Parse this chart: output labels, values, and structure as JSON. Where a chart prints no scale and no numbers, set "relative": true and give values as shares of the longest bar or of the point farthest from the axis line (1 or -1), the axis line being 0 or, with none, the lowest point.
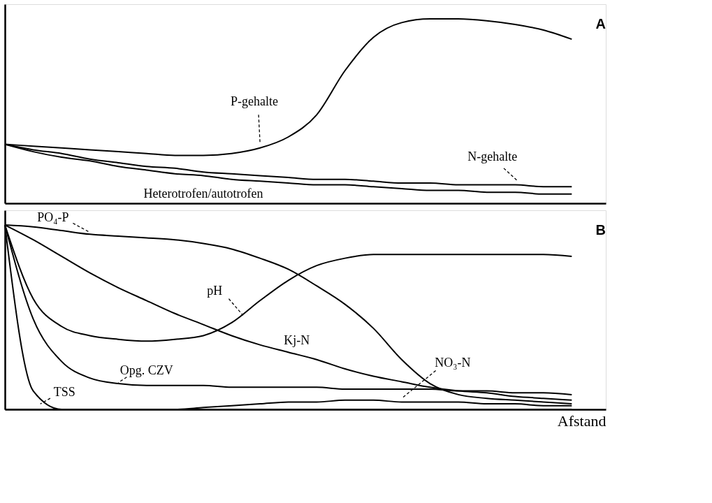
{
  "chart_data": [
    {
      "type": "line",
      "title": "A",
      "relative": true,
      "legend": false,
      "grid": false,
      "tick_labels": false,
      "marker": "none",
      "line_style": "solid",
      "categories": [
        null,
        null,
        null,
        null,
        null,
        null,
        null,
        null,
        null,
        null,
        null,
        null,
        null,
        null,
        null,
        null,
        null,
        null,
        null,
        null,
        null
      ],
      "series": [
        {
          "name": "P-gehalte",
          "color": "#000000",
          "values": [
            0.32,
            0.31,
            0.3,
            0.29,
            0.28,
            0.27,
            0.26,
            0.26,
            0.27,
            0.3,
            0.36,
            0.48,
            0.72,
            0.9,
            0.98,
            1.0,
            1.0,
            0.99,
            0.97,
            0.94,
            0.89
          ]
        },
        {
          "name": "N-gehalte",
          "color": "#000000",
          "values": [
            0.32,
            0.29,
            0.27,
            0.24,
            0.22,
            0.2,
            0.19,
            0.17,
            0.16,
            0.15,
            0.14,
            0.13,
            0.13,
            0.12,
            0.11,
            0.11,
            0.1,
            0.1,
            0.1,
            0.09,
            0.09
          ]
        },
        {
          "name": "Heterotrofen/autotrofen",
          "color": "#000000",
          "values": [
            0.32,
            0.28,
            0.25,
            0.23,
            0.2,
            0.18,
            0.16,
            0.15,
            0.13,
            0.12,
            0.11,
            0.1,
            0.1,
            0.09,
            0.08,
            0.07,
            0.07,
            0.06,
            0.06,
            0.05,
            0.05
          ]
        }
      ]
    },
    {
      "type": "line",
      "title": "B",
      "xlabel": "Afstand",
      "relative": true,
      "legend": false,
      "grid": false,
      "tick_labels": false,
      "marker": "none",
      "line_style": "solid",
      "categories": [
        null,
        null,
        null,
        null,
        null,
        null,
        null,
        null,
        null,
        null,
        null,
        null,
        null,
        null,
        null,
        null,
        null,
        null,
        null,
        null,
        null
      ],
      "series": [
        {
          "name": "PO₄-P",
          "color": "#000000",
          "values": [
            1.0,
            0.99,
            0.97,
            0.95,
            0.94,
            0.93,
            0.92,
            0.9,
            0.87,
            0.82,
            0.76,
            0.67,
            0.57,
            0.44,
            0.27,
            0.14,
            0.08,
            0.06,
            0.05,
            0.04,
            0.03
          ]
        },
        {
          "name": "Kj-N",
          "color": "#000000",
          "values": [
            1.0,
            0.92,
            0.83,
            0.74,
            0.66,
            0.59,
            0.52,
            0.46,
            0.4,
            0.35,
            0.31,
            0.27,
            0.22,
            0.18,
            0.15,
            0.12,
            0.1,
            0.09,
            0.07,
            0.06,
            0.05
          ]
        },
        {
          "name": "pH",
          "color": "#000000",
          "values": [
            1.0,
            0.6,
            0.45,
            0.4,
            0.38,
            0.37,
            0.38,
            0.4,
            0.47,
            0.59,
            0.7,
            0.78,
            0.82,
            0.84,
            0.84,
            0.84,
            0.84,
            0.84,
            0.84,
            0.84,
            0.83
          ]
        },
        {
          "name": "Opg. CZV",
          "color": "#000000",
          "values": [
            1.0,
            0.49,
            0.26,
            0.17,
            0.14,
            0.13,
            0.13,
            0.13,
            0.12,
            0.12,
            0.12,
            0.12,
            0.11,
            0.11,
            0.11,
            0.11,
            0.1,
            0.1,
            0.09,
            0.09,
            0.08
          ]
        },
        {
          "name": "TSS",
          "color": "#000000",
          "values": [
            1.0,
            0.1,
            0,
            0,
            0,
            0,
            0,
            0,
            0,
            0,
            0,
            0,
            0,
            0,
            0,
            0,
            0,
            0,
            0,
            0,
            0
          ]
        },
        {
          "name": "NO₃-N",
          "color": "#000000",
          "values": [
            0,
            0,
            0,
            0,
            0,
            0,
            0,
            0.01,
            0.02,
            0.03,
            0.04,
            0.04,
            0.05,
            0.05,
            0.04,
            0.04,
            0.04,
            0.03,
            0.03,
            0.02,
            0.02
          ]
        }
      ]
    }
  ]
}
